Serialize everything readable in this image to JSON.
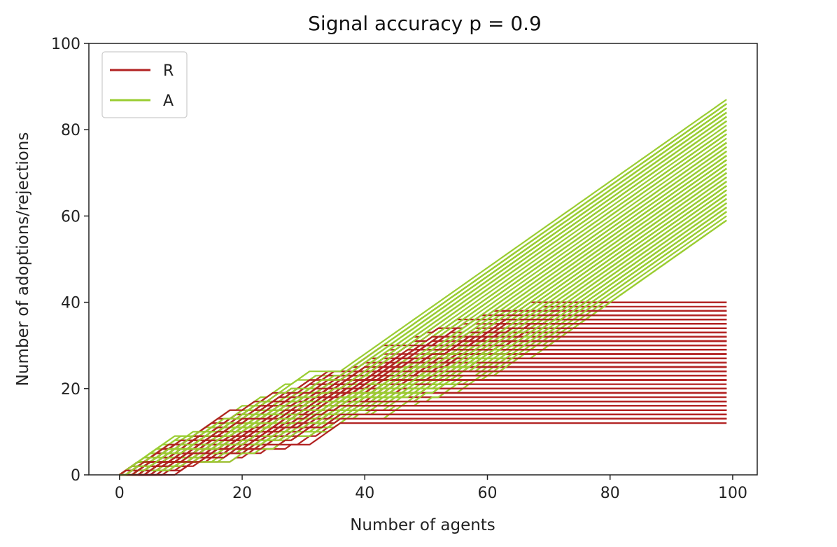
{
  "chart_data": {
    "type": "line",
    "title": "Signal accuracy p =  0.9",
    "xlabel": "Number of agents",
    "ylabel": "Number of adoptions/rejections",
    "xlim": [
      -5,
      104
    ],
    "ylim": [
      0,
      100
    ],
    "xticks": [
      0,
      20,
      40,
      60,
      80,
      100
    ],
    "yticks": [
      0,
      20,
      40,
      60,
      80,
      100
    ],
    "grid": false,
    "legend_position": "top-left",
    "series": [
      {
        "name": "R",
        "color": "#b22222",
        "description_values": {
          "x_range": [
            0,
            99
          ],
          "final_values_min": 12,
          "final_values_max": 40,
          "plateau_start_x_range": [
            37,
            75
          ]
        }
      },
      {
        "name": "A",
        "color": "#9acd32",
        "description_values": {
          "x_range": [
            0,
            99
          ],
          "final_values_min": 60,
          "final_values_max": 88,
          "diverge_start_x_range": [
            37,
            75
          ]
        }
      }
    ],
    "num_runs": 140
  }
}
